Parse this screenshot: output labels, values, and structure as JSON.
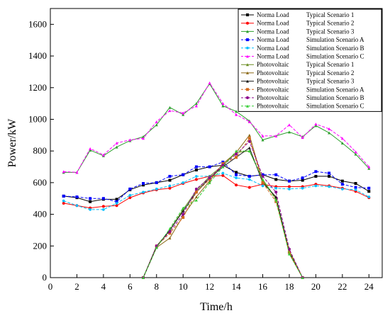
{
  "chart_data": {
    "type": "line",
    "xlabel": "Time/h",
    "ylabel": "Power/kW",
    "xlim": [
      0,
      25
    ],
    "ylim": [
      0,
      1700
    ],
    "x_ticks": [
      0,
      2,
      4,
      6,
      8,
      10,
      12,
      14,
      16,
      18,
      20,
      22,
      24
    ],
    "y_ticks": [
      0,
      200,
      400,
      600,
      800,
      1000,
      1200,
      1400,
      1600
    ],
    "grid": false,
    "legend_position": "top-right",
    "x": [
      1,
      2,
      3,
      4,
      5,
      6,
      7,
      8,
      9,
      10,
      11,
      12,
      13,
      14,
      15,
      16,
      17,
      18,
      19,
      20,
      21,
      22,
      23,
      24
    ],
    "series": [
      {
        "name": "Norma Load",
        "scenario": "Typical Scenario 1",
        "color": "#000000",
        "marker": "square",
        "dashed": false,
        "values": [
          515,
          505,
          480,
          495,
          495,
          555,
          585,
          600,
          615,
          650,
          680,
          700,
          710,
          665,
          640,
          650,
          620,
          610,
          615,
          640,
          640,
          610,
          595,
          545
        ]
      },
      {
        "name": "Norma Load",
        "scenario": "Typical Scenario 2",
        "color": "#ff0000",
        "marker": "circle",
        "dashed": false,
        "values": [
          470,
          455,
          440,
          450,
          455,
          505,
          535,
          555,
          565,
          595,
          620,
          640,
          645,
          585,
          570,
          590,
          575,
          575,
          575,
          590,
          580,
          565,
          545,
          505
        ]
      },
      {
        "name": "Norma Load",
        "scenario": "Typical Scenario 3",
        "color": "#2ca02c",
        "marker": "triangle",
        "dashed": false,
        "values": [
          665,
          665,
          805,
          770,
          825,
          865,
          890,
          965,
          1075,
          1030,
          1100,
          1225,
          1085,
          1050,
          990,
          870,
          895,
          920,
          890,
          960,
          915,
          850,
          780,
          690
        ]
      },
      {
        "name": "Norma Load",
        "scenario": "Simulation Scenario A",
        "color": "#0000ff",
        "marker": "square",
        "dashed": true,
        "values": [
          515,
          510,
          500,
          500,
          480,
          560,
          595,
          600,
          640,
          650,
          700,
          700,
          730,
          650,
          640,
          650,
          650,
          610,
          630,
          670,
          660,
          590,
          570,
          565
        ]
      },
      {
        "name": "Norma Load",
        "scenario": "Simulation Scenario B",
        "color": "#00bfff",
        "marker": "star",
        "dashed": true,
        "values": [
          485,
          455,
          430,
          430,
          470,
          520,
          540,
          560,
          580,
          600,
          640,
          640,
          660,
          630,
          620,
          580,
          565,
          560,
          565,
          580,
          575,
          560,
          555,
          510
        ]
      },
      {
        "name": "Norma Load",
        "scenario": "Simulation Scenario C",
        "color": "#ff00ff",
        "marker": "triangle",
        "dashed": true,
        "values": [
          670,
          665,
          815,
          775,
          850,
          870,
          880,
          985,
          1055,
          1040,
          1085,
          1230,
          1100,
          1030,
          985,
          895,
          895,
          965,
          885,
          970,
          940,
          880,
          795,
          700
        ]
      },
      {
        "name": "Photovoltaic",
        "scenario": "Typical Scenario 1",
        "color": "#6b8e23",
        "marker": "triangle",
        "dashed": false,
        "values": [
          null,
          null,
          null,
          null,
          null,
          null,
          0,
          200,
          300,
          430,
          550,
          640,
          710,
          790,
          800,
          620,
          500,
          170,
          0,
          null,
          null,
          null,
          null,
          null
        ]
      },
      {
        "name": "Photovoltaic",
        "scenario": "Typical Scenario 2",
        "color": "#8b6914",
        "marker": "triangle",
        "dashed": false,
        "values": [
          null,
          null,
          null,
          null,
          null,
          null,
          0,
          190,
          250,
          390,
          510,
          610,
          720,
          790,
          900,
          610,
          500,
          150,
          0,
          null,
          null,
          null,
          null,
          null
        ]
      },
      {
        "name": "Photovoltaic",
        "scenario": "Typical Scenario 3",
        "color": "#1a1a1a",
        "marker": "triangle",
        "dashed": false,
        "values": [
          null,
          null,
          null,
          null,
          null,
          null,
          0,
          195,
          300,
          420,
          540,
          630,
          700,
          760,
          820,
          600,
          510,
          160,
          0,
          null,
          null,
          null,
          null,
          null
        ]
      },
      {
        "name": "Photovoltaic",
        "scenario": "Simulation Scenario A",
        "color": "#d2691e",
        "marker": "square",
        "dashed": true,
        "values": [
          null,
          null,
          null,
          null,
          null,
          null,
          0,
          200,
          280,
          380,
          540,
          620,
          720,
          760,
          880,
          600,
          480,
          160,
          0,
          null,
          null,
          null,
          null,
          null
        ]
      },
      {
        "name": "Photovoltaic",
        "scenario": "Simulation Scenario B",
        "color": "#8b008b",
        "marker": "circle",
        "dashed": true,
        "values": [
          null,
          null,
          null,
          null,
          null,
          null,
          0,
          200,
          290,
          400,
          560,
          630,
          710,
          780,
          860,
          640,
          540,
          180,
          0,
          null,
          null,
          null,
          null,
          null
        ]
      },
      {
        "name": "Photovoltaic",
        "scenario": "Simulation Scenario C",
        "color": "#32cd32",
        "marker": "triangle",
        "dashed": true,
        "values": [
          null,
          null,
          null,
          null,
          null,
          null,
          0,
          190,
          310,
          440,
          490,
          600,
          700,
          800,
          800,
          620,
          490,
          150,
          0,
          null,
          null,
          null,
          null,
          null
        ]
      }
    ]
  }
}
